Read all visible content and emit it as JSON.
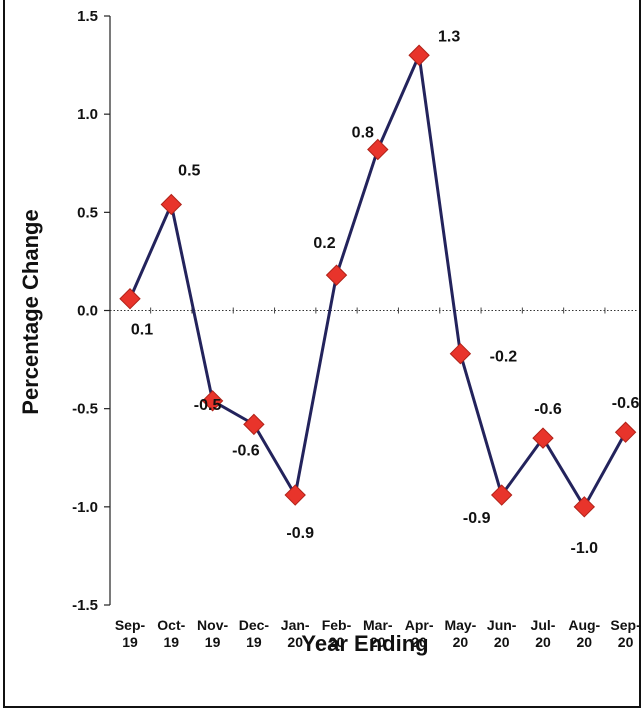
{
  "chart_data": {
    "type": "line",
    "title": "",
    "xlabel": "Year Ending",
    "ylabel": "Percentage Change",
    "categories": [
      [
        "Sep-",
        "19"
      ],
      [
        "Oct-",
        "19"
      ],
      [
        "Nov-",
        "19"
      ],
      [
        "Dec-",
        "19"
      ],
      [
        "Jan-",
        "20"
      ],
      [
        "Feb-",
        "20"
      ],
      [
        "Mar-",
        "20"
      ],
      [
        "Apr-",
        "20"
      ],
      [
        "May-",
        "20"
      ],
      [
        "Jun-",
        "20"
      ],
      [
        "Jul-",
        "20"
      ],
      [
        "Aug-",
        "20"
      ],
      [
        "Sep-",
        "20"
      ]
    ],
    "series": [
      {
        "values": [
          0.06,
          0.54,
          -0.46,
          -0.58,
          -0.94,
          0.18,
          0.82,
          1.3,
          -0.22,
          -0.94,
          -0.65,
          -1.0,
          -0.62
        ],
        "data_labels": [
          "0.1",
          "0.5",
          "-0.5",
          "-0.6",
          "-0.9",
          "0.2",
          "0.8",
          "1.3",
          "-0.2",
          "-0.9",
          "-0.6",
          "-1.0",
          "-0.6"
        ],
        "line_color": "#23235c",
        "marker_color": "#e8342b",
        "marker": "diamond"
      }
    ],
    "ylim": [
      -1.5,
      1.5
    ],
    "yticks": [
      1.5,
      1.0,
      0.5,
      0.0,
      -0.5,
      -1.0,
      -1.5
    ],
    "ytick_labels": [
      "1.5",
      "1.0",
      "0.5",
      "0.0",
      "-0.5",
      "-1.0",
      "-1.5"
    ],
    "zero_line": "dotted",
    "grid": false,
    "legend": "none"
  }
}
